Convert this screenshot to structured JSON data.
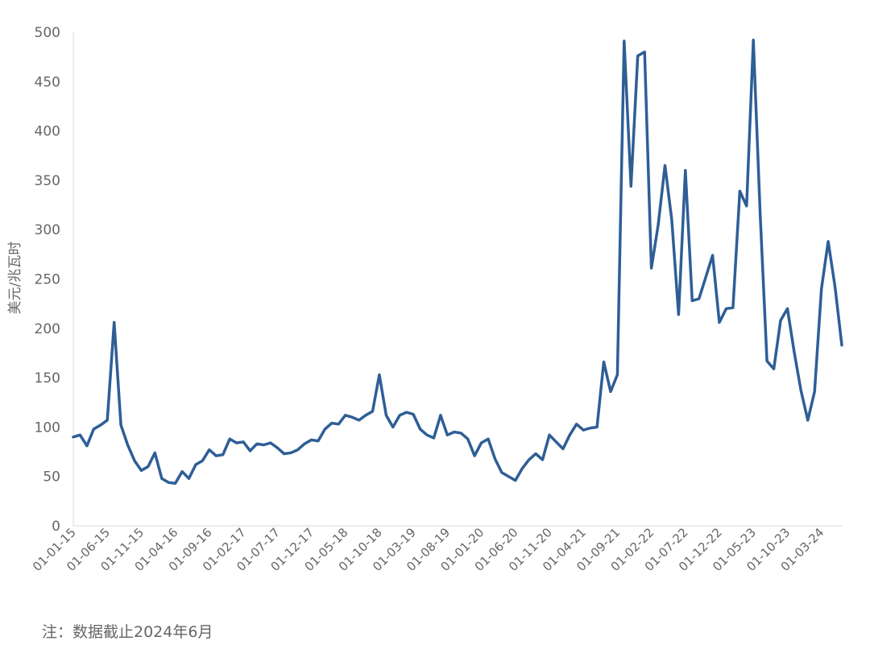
{
  "chart_data": {
    "type": "line",
    "ylabel": "美元/兆瓦时",
    "ylim": [
      0,
      500
    ],
    "yticks": [
      "0",
      "50",
      "100",
      "150",
      "200",
      "250",
      "300",
      "350",
      "400",
      "450",
      "500"
    ],
    "xticks": [
      "01-01-15",
      "01-06-15",
      "01-11-15",
      "01-04-16",
      "01-09-16",
      "01-02-17",
      "01-07-17",
      "01-12-17",
      "01-05-18",
      "01-10-18",
      "01-03-19",
      "01-08-19",
      "01-01-20",
      "01-06-20",
      "01-11-20",
      "01-04-21",
      "01-09-21",
      "01-02-22",
      "01-07-22",
      "01-12-22",
      "01-05-23",
      "01-10-23",
      "01-03-24"
    ],
    "grid": false,
    "line_color": "#2f5e96",
    "series": [
      {
        "values": [
          90,
          92,
          81,
          98,
          102,
          107,
          206,
          102,
          82,
          66,
          56,
          60,
          74,
          48,
          44,
          43,
          55,
          48,
          62,
          66,
          77,
          71,
          72,
          88,
          84,
          85,
          76,
          83,
          82,
          84,
          79,
          73,
          74,
          77,
          83,
          87,
          86,
          98,
          104,
          103,
          112,
          110,
          107,
          112,
          116,
          153,
          112,
          100,
          112,
          115,
          113,
          98,
          92,
          89,
          112,
          92,
          95,
          94,
          88,
          71,
          84,
          88,
          68,
          54,
          50,
          46,
          58,
          67,
          73,
          67,
          92,
          85,
          78,
          92,
          103,
          97,
          99,
          100,
          166,
          136,
          153,
          491,
          344,
          476,
          480,
          261,
          305,
          365,
          310,
          214,
          360,
          228,
          230,
          252,
          274,
          206,
          220,
          221,
          339,
          324,
          492,
          315,
          167,
          159,
          208,
          220,
          176,
          137,
          107,
          136,
          240,
          288,
          242,
          183
        ]
      }
    ]
  },
  "note": "注：数据截止2024年6月"
}
